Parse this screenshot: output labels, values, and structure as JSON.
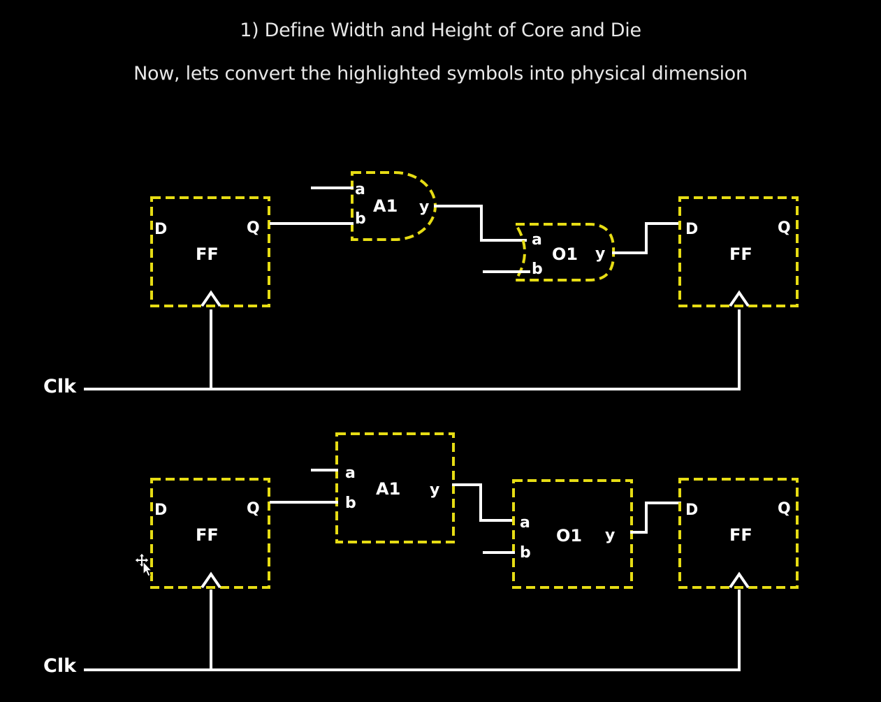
{
  "header": {
    "title": "1) Define Width and Height of Core and Die",
    "subtitle": "Now, lets convert the highlighted symbols into physical dimension"
  },
  "colors": {
    "background": "#000000",
    "wire": "#ffffff",
    "cell_outline": "#e6dc14"
  },
  "diagram_top": {
    "clock_label": "Clk",
    "ff_left": {
      "d": "D",
      "q": "Q",
      "name": "FF"
    },
    "and_gate": {
      "a": "a",
      "b": "b",
      "name": "A1",
      "y": "y"
    },
    "or_gate": {
      "a": "a",
      "b": "b",
      "name": "O1",
      "y": "y"
    },
    "ff_right": {
      "d": "D",
      "q": "Q",
      "name": "FF"
    }
  },
  "diagram_bottom": {
    "clock_label": "Clk",
    "ff_left": {
      "d": "D",
      "q": "Q",
      "name": "FF"
    },
    "and_cell": {
      "a": "a",
      "b": "b",
      "name": "A1",
      "y": "y"
    },
    "or_cell": {
      "a": "a",
      "b": "b",
      "name": "O1",
      "y": "y"
    },
    "ff_right": {
      "d": "D",
      "q": "Q",
      "name": "FF"
    }
  },
  "cursor_icon": "move-cursor-icon"
}
